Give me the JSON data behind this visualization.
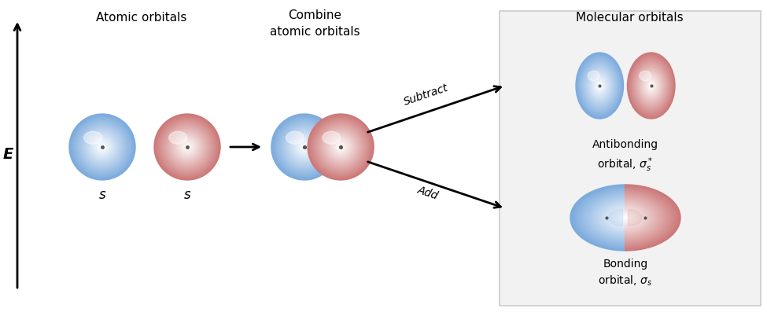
{
  "bg_color": "#ffffff",
  "panel_bg": "#f2f2f2",
  "panel_edge": "#cccccc",
  "blue_base": "#7aaadd",
  "blue_dark": "#4477aa",
  "blue_light": "#aaccee",
  "red_base": "#cc7777",
  "red_dark": "#aa4444",
  "red_light": "#eeaaaa",
  "dot_color": "#555555",
  "text_color": "#111111",
  "arrow_color": "#111111",
  "title_atomic": "Atomic orbitals",
  "title_combine": "Combine\natomic orbitals",
  "title_molecular": "Molecular orbitals",
  "label_subtract": "Subtract",
  "label_add": "Add",
  "label_s": "s",
  "label_E": "E",
  "label_antibonding": "Antibonding\norbital, $\\sigma_s^*$",
  "label_bonding": "Bonding\norbital, $\\sigma_s$"
}
